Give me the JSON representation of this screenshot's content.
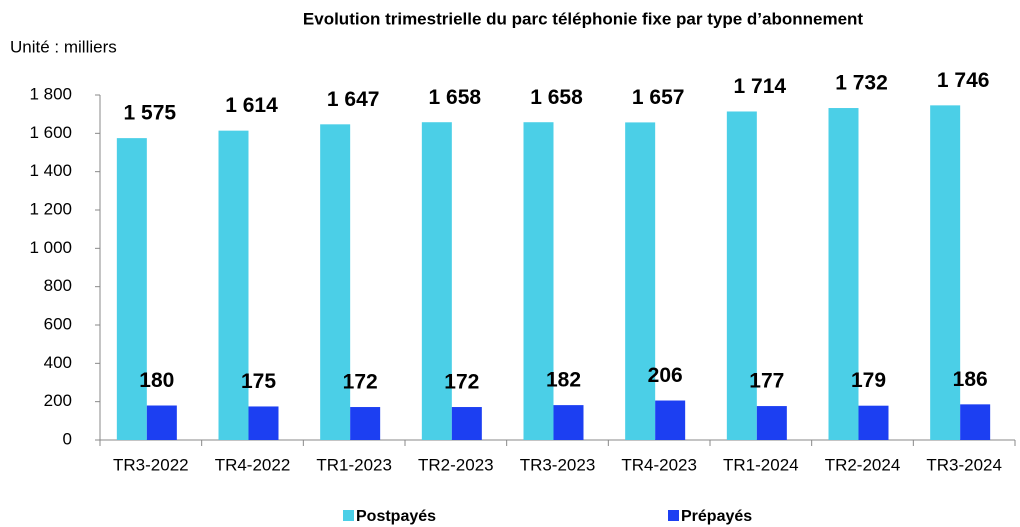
{
  "chart_data": {
    "type": "bar",
    "title": "Evolution trimestrielle du parc téléphonie fixe par type d’abonnement",
    "subtitle": "Unité : milliers",
    "categories": [
      "TR3-2022",
      "TR4-2022",
      "TR1-2023",
      "TR2-2023",
      "TR3-2023",
      "TR4-2023",
      "TR1-2024",
      "TR2-2024",
      "TR3-2024"
    ],
    "series": [
      {
        "name": "Postpayés",
        "color": "#4bcfe7",
        "values": [
          1575,
          1614,
          1647,
          1658,
          1658,
          1657,
          1714,
          1732,
          1746
        ],
        "value_labels": [
          "1 575",
          "1 614",
          "1 647",
          "1 658",
          "1 658",
          "1 657",
          "1 714",
          "1 732",
          "1 746"
        ]
      },
      {
        "name": "Prépayés",
        "color": "#1c3ff2",
        "values": [
          180,
          175,
          172,
          172,
          182,
          206,
          177,
          179,
          186
        ]
      }
    ],
    "ylim": [
      0,
      1800
    ],
    "yticks": [
      0,
      200,
      400,
      600,
      800,
      {
        "value": 1000,
        "label": "1 000"
      },
      {
        "value": 1200,
        "label": "1 200"
      },
      {
        "value": 1400,
        "label": "1 400"
      },
      {
        "value": 1600,
        "label": "1 600"
      },
      {
        "value": 1800,
        "label": "1 800"
      }
    ],
    "legend": "bottom"
  }
}
